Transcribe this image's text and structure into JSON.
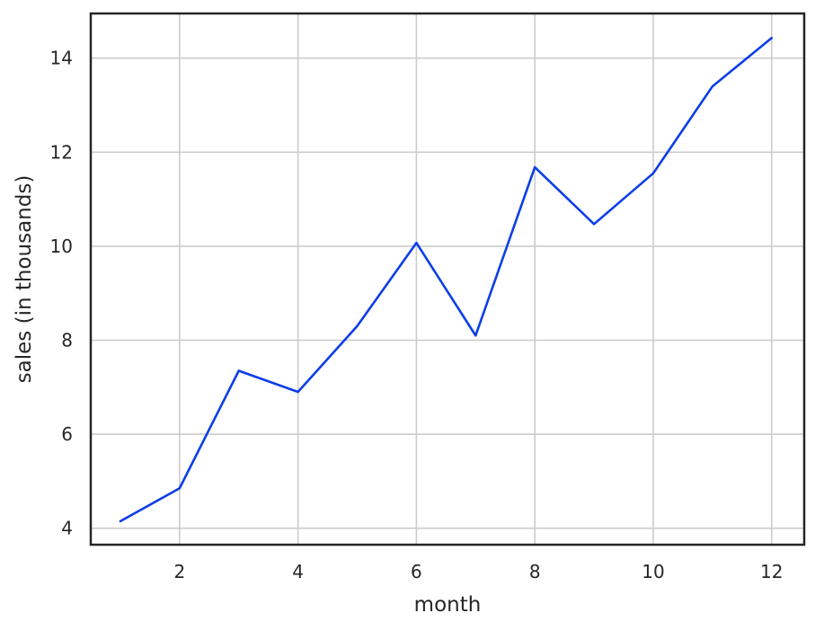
{
  "chart_data": {
    "type": "line",
    "title": "",
    "xlabel": "month",
    "ylabel": "sales (in thousands)",
    "xlim": [
      0.5,
      12.55
    ],
    "ylim": [
      3.65,
      14.95
    ],
    "xticks": [
      2,
      4,
      6,
      8,
      10,
      12
    ],
    "yticks": [
      4,
      6,
      8,
      10,
      12,
      14
    ],
    "grid": true,
    "series": [
      {
        "color": "#0b3ee8",
        "x": [
          1,
          2,
          3,
          4,
          5,
          6,
          7,
          8,
          9,
          10,
          11,
          12
        ],
        "y": [
          4.15,
          4.85,
          7.35,
          6.9,
          8.3,
          10.07,
          8.1,
          11.68,
          10.47,
          11.55,
          13.4,
          14.43
        ]
      }
    ]
  }
}
